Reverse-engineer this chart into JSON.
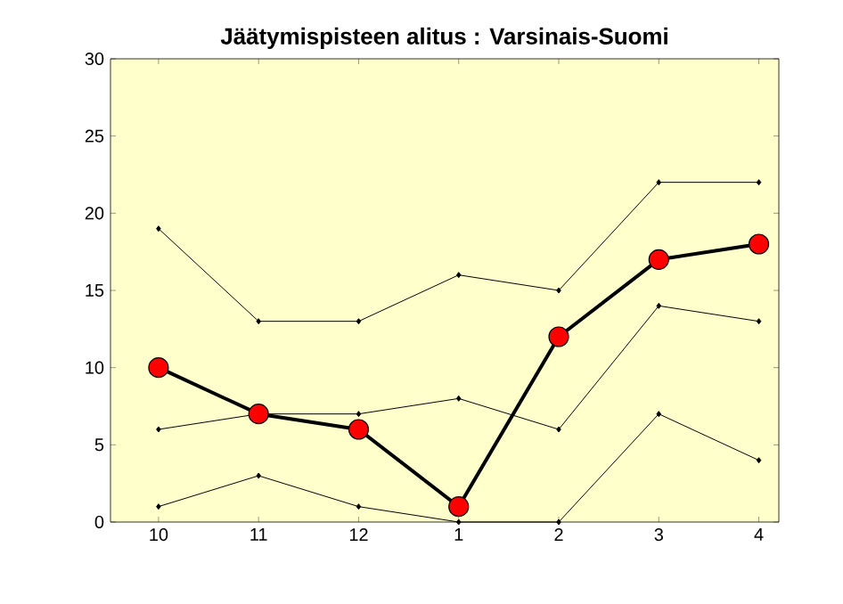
{
  "chart_data": {
    "type": "line",
    "title": "Jäätymispisteen alitus :  Varsinais-Suomi",
    "categories": [
      "10",
      "11",
      "12",
      "1",
      "2",
      "3",
      "4"
    ],
    "ylim": [
      0,
      30
    ],
    "yticks": [
      0,
      5,
      10,
      15,
      20,
      25,
      30
    ],
    "series": [
      {
        "color": "#000000",
        "marker": "diamond",
        "values": [
          19,
          13,
          13,
          16,
          15,
          22,
          22
        ]
      },
      {
        "color": "#000000",
        "marker": "diamond",
        "values": [
          6,
          7,
          7,
          8,
          6,
          14,
          13
        ]
      },
      {
        "color": "#000000",
        "marker": "diamond",
        "values": [
          1,
          3,
          1,
          0,
          0,
          7,
          4
        ]
      },
      {
        "color": "#ff0000",
        "marker": "circle",
        "values": [
          10,
          7,
          6,
          1,
          12,
          17,
          18
        ]
      }
    ]
  }
}
